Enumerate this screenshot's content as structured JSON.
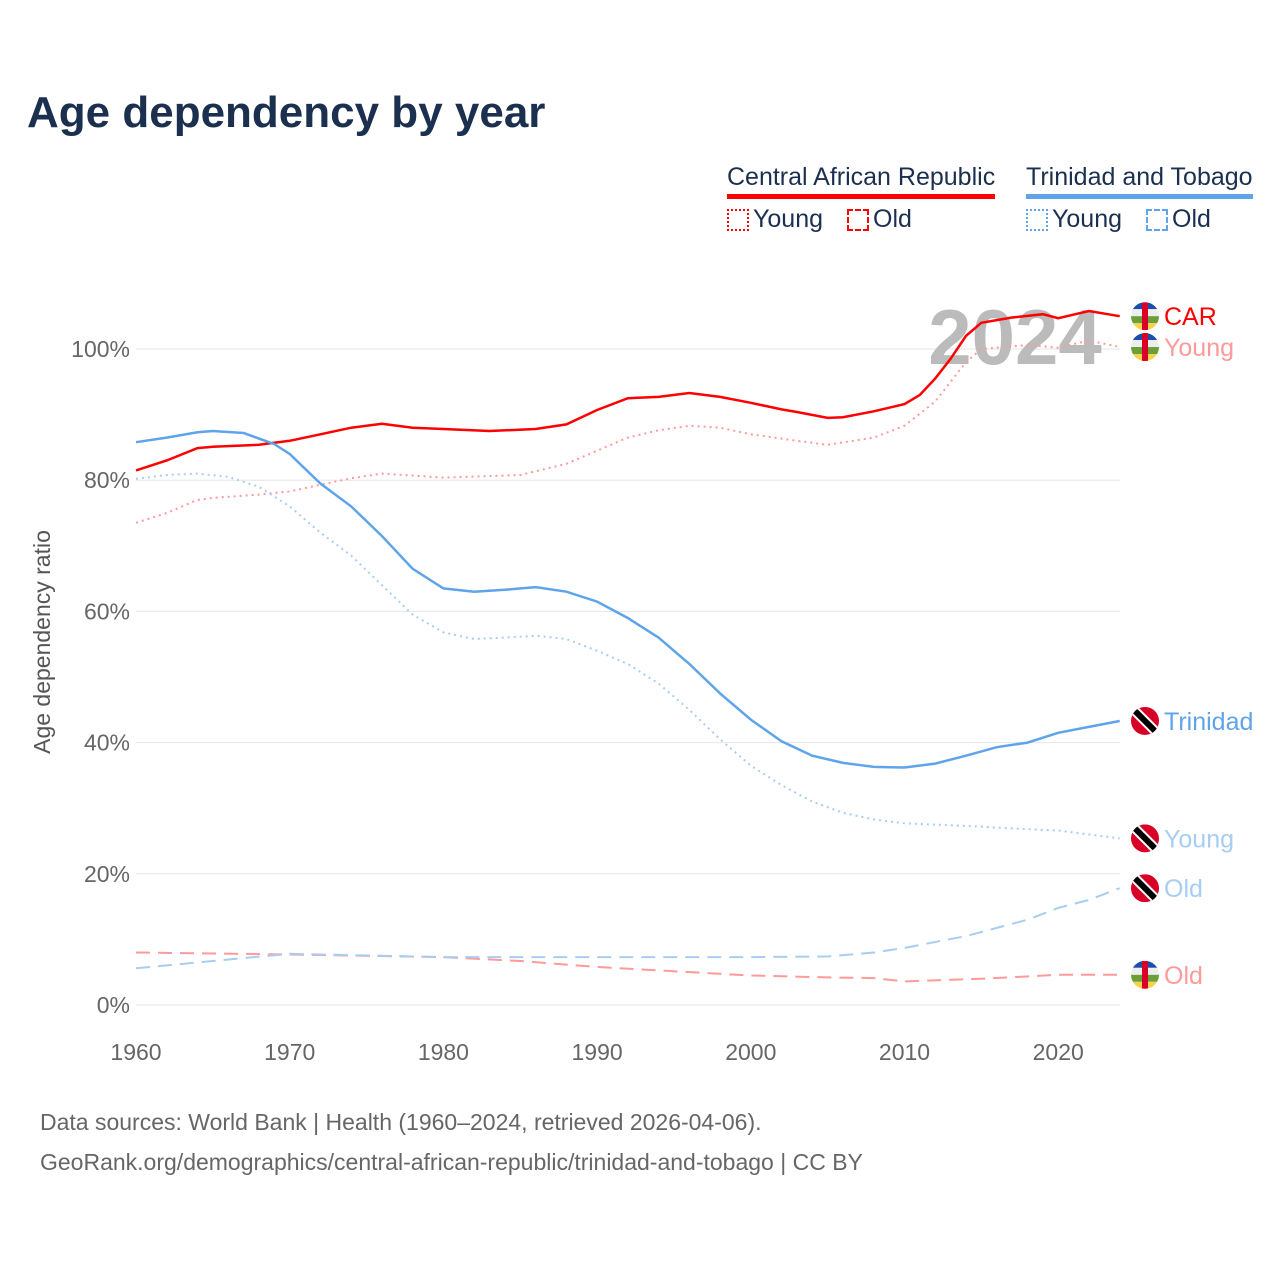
{
  "title": "Age dependency by year",
  "legend": {
    "countries": [
      {
        "name": "Central African Republic",
        "color": "#ff0000"
      },
      {
        "name": "Trinidad and Tobago",
        "color": "#5fa4ea"
      }
    ],
    "young": "Young",
    "old": "Old"
  },
  "footer": {
    "line1": "Data sources: World Bank | Health (1960–2024, retrieved 2026-04-06).",
    "line2": "GeoRank.org/demographics/central-african-republic/trinidad-and-tobago | CC BY"
  },
  "chart_data": {
    "type": "line",
    "title": "Age dependency by year",
    "ylabel": "Age dependency ratio",
    "year_watermark": "2024",
    "xlim": [
      1960,
      2024
    ],
    "ylim": [
      0,
      110
    ],
    "xticks": [
      "1960",
      "1970",
      "1980",
      "1990",
      "2000",
      "2010",
      "2020"
    ],
    "yticks": [
      "0%",
      "20%",
      "40%",
      "60%",
      "80%",
      "100%"
    ],
    "series": [
      {
        "name": "CAR",
        "end_label": "CAR",
        "country": "CAR",
        "kind": "total",
        "color": "#ff0000",
        "dash": "",
        "x": [
          1960,
          1962,
          1964,
          1965,
          1968,
          1970,
          1972,
          1974,
          1976,
          1978,
          1980,
          1983,
          1986,
          1988,
          1990,
          1992,
          1994,
          1996,
          1998,
          2000,
          2002,
          2003,
          2005,
          2006,
          2008,
          2010,
          2011,
          2012,
          2013,
          2014,
          2015,
          2017,
          2019,
          2020,
          2022,
          2024
        ],
        "y": [
          81.5,
          83,
          84.9,
          85.1,
          85.4,
          86,
          87,
          88,
          88.6,
          88,
          87.8,
          87.5,
          87.8,
          88.5,
          90.7,
          92.5,
          92.7,
          93.3,
          92.7,
          91.8,
          90.8,
          90.4,
          89.5,
          89.6,
          90.5,
          91.6,
          93,
          95.5,
          98.5,
          102,
          104,
          104.8,
          105.3,
          104.7,
          105.8,
          105
        ]
      },
      {
        "name": "CAR Young",
        "end_label": "Young",
        "country": "CAR",
        "kind": "young",
        "color": "#ff9a9a",
        "dash": "2 4",
        "x": [
          1960,
          1962,
          1964,
          1965,
          1968,
          1970,
          1972,
          1974,
          1976,
          1980,
          1985,
          1988,
          1990,
          1992,
          1994,
          1996,
          1998,
          2000,
          2003,
          2005,
          2008,
          2010,
          2012,
          2014,
          2015,
          2018,
          2020,
          2022,
          2024
        ],
        "y": [
          73.5,
          75,
          77,
          77.3,
          77.8,
          78.3,
          79.3,
          80.3,
          81,
          80.4,
          80.8,
          82.5,
          84.5,
          86.5,
          87.6,
          88.3,
          88,
          87,
          86,
          85.4,
          86.5,
          88.3,
          92,
          98,
          100,
          100.6,
          100.2,
          101.3,
          100.3
        ]
      },
      {
        "name": "CAR Old",
        "end_label": "Old",
        "country": "CAR",
        "kind": "old",
        "color": "#ff9a9a",
        "dash": "14 8",
        "x": [
          1960,
          1970,
          1980,
          1985,
          1990,
          2000,
          2005,
          2008,
          2010,
          2015,
          2020,
          2024
        ],
        "y": [
          8,
          7.7,
          7.3,
          6.7,
          5.8,
          4.5,
          4.2,
          4.1,
          3.6,
          4,
          4.6,
          4.6
        ]
      },
      {
        "name": "Trinidad",
        "end_label": "Trinidad",
        "country": "TT",
        "kind": "total",
        "color": "#5fa4ea",
        "dash": "",
        "x": [
          1960,
          1962,
          1964,
          1965,
          1967,
          1969,
          1970,
          1972,
          1974,
          1976,
          1978,
          1980,
          1982,
          1984,
          1986,
          1988,
          1990,
          1992,
          1994,
          1996,
          1998,
          2000,
          2002,
          2004,
          2006,
          2008,
          2010,
          2012,
          2014,
          2016,
          2018,
          2020,
          2022,
          2024
        ],
        "y": [
          85.8,
          86.5,
          87.3,
          87.5,
          87.2,
          85.5,
          84,
          79.5,
          76,
          71.5,
          66.5,
          63.5,
          63,
          63.3,
          63.7,
          63,
          61.5,
          59,
          56,
          52,
          47.5,
          43.5,
          40.2,
          38,
          36.9,
          36.3,
          36.2,
          36.8,
          38,
          39.3,
          40,
          41.5,
          42.4,
          43.3
        ]
      },
      {
        "name": "Trinidad Young",
        "end_label": "Young",
        "country": "TT",
        "kind": "young",
        "color": "#a8cdf3",
        "dash": "2 4",
        "x": [
          1960,
          1962,
          1964,
          1966,
          1968,
          1970,
          1972,
          1974,
          1976,
          1978,
          1980,
          1982,
          1984,
          1986,
          1988,
          1990,
          1992,
          1994,
          1996,
          1998,
          2000,
          2002,
          2004,
          2006,
          2008,
          2010,
          2014,
          2018,
          2020,
          2024
        ],
        "y": [
          80.2,
          80.8,
          81,
          80.5,
          79,
          76,
          72,
          68.5,
          64,
          59.5,
          56.8,
          55.8,
          56,
          56.3,
          55.8,
          54,
          52,
          49,
          45,
          40.5,
          36.5,
          33.5,
          31,
          29.3,
          28.3,
          27.7,
          27.3,
          26.8,
          26.6,
          25.4
        ]
      },
      {
        "name": "Trinidad Old",
        "end_label": "Old",
        "country": "TT",
        "kind": "old",
        "color": "#a8cdf3",
        "dash": "14 8",
        "x": [
          1960,
          1965,
          1970,
          1980,
          1990,
          2000,
          2005,
          2008,
          2010,
          2014,
          2018,
          2020,
          2022,
          2024
        ],
        "y": [
          5.6,
          6.7,
          7.8,
          7.3,
          7.3,
          7.3,
          7.4,
          8,
          8.7,
          10.5,
          13,
          14.8,
          16,
          17.8
        ]
      }
    ]
  }
}
